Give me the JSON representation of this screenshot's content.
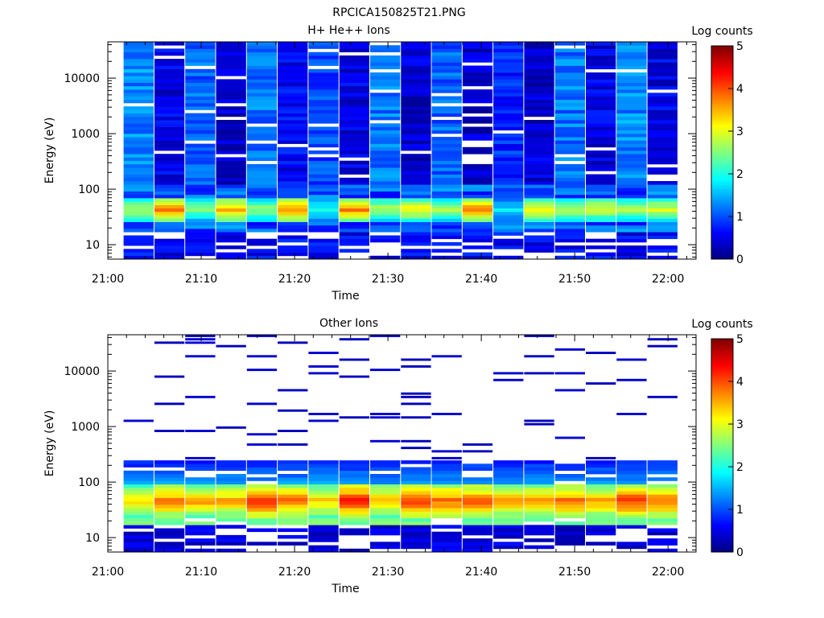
{
  "page": {
    "title": "RPCICA150825T21.PNG"
  },
  "chart_data": [
    {
      "type": "heatmap",
      "title": "H+ He++ Ions",
      "xlabel": "Time",
      "ylabel": "Energy (eV)",
      "x_ticks": [
        "21:00",
        "21:10",
        "21:20",
        "21:30",
        "21:40",
        "21:50",
        "22:00"
      ],
      "y_ticks": [
        "10",
        "100",
        "1000",
        "10000"
      ],
      "y_scale": "log",
      "ylim": [
        5.5,
        45000
      ],
      "xlim_minutes": [
        0,
        63
      ],
      "colorbar": {
        "label": "Log counts",
        "ticks": [
          "0",
          "1",
          "2",
          "3",
          "4",
          "5"
        ],
        "range": [
          0,
          5
        ],
        "colormap": "jet"
      },
      "grid": false,
      "columns_time_minutes": [
        3.3,
        6.6,
        9.9,
        13.2,
        16.5,
        19.8,
        23.1,
        26.4,
        29.7,
        33.0,
        36.3,
        39.6,
        42.9,
        46.2,
        49.5,
        52.8,
        56.1,
        59.4
      ],
      "peak_energy_eV": [
        [
          35,
          55
        ],
        [
          35,
          55
        ],
        [
          35,
          55
        ],
        [
          35,
          55
        ],
        [
          35,
          55
        ],
        [
          35,
          55
        ],
        [
          35,
          55
        ],
        [
          35,
          55
        ],
        [
          35,
          55
        ],
        [
          35,
          55
        ],
        [
          35,
          55
        ],
        [
          35,
          55
        ],
        [
          35,
          55
        ],
        [
          35,
          55
        ],
        [
          35,
          55
        ],
        [
          35,
          55
        ],
        [
          35,
          55
        ],
        [
          35,
          55
        ]
      ],
      "peak_log_counts": [
        2.8,
        3.8,
        2.5,
        3.6,
        2.6,
        3.8,
        2.0,
        3.9,
        2.8,
        3.2,
        2.7,
        3.8,
        1.8,
        3.3,
        2.9,
        3.0,
        2.8,
        3.0
      ],
      "background_log_counts": [
        1.3,
        0.5,
        1.1,
        0.4,
        1.2,
        0.6,
        1.0,
        0.5,
        1.2,
        0.4,
        1.1,
        0.4,
        0.8,
        0.4,
        1.2,
        0.5,
        1.3,
        0.5
      ]
    },
    {
      "type": "heatmap",
      "title": "Other Ions",
      "xlabel": "Time",
      "ylabel": "Energy (eV)",
      "x_ticks": [
        "21:00",
        "21:10",
        "21:20",
        "21:30",
        "21:40",
        "21:50",
        "22:00"
      ],
      "y_ticks": [
        "10",
        "100",
        "1000",
        "10000"
      ],
      "y_scale": "log",
      "ylim": [
        5.5,
        45000
      ],
      "xlim_minutes": [
        0,
        63
      ],
      "colorbar": {
        "label": "Log counts",
        "ticks": [
          "0",
          "1",
          "2",
          "3",
          "4",
          "5"
        ],
        "range": [
          0,
          5
        ],
        "colormap": "jet"
      },
      "grid": false,
      "columns_time_minutes": [
        3.3,
        6.6,
        9.9,
        13.2,
        16.5,
        19.8,
        23.1,
        26.4,
        29.7,
        33.0,
        36.3,
        39.6,
        42.9,
        46.2,
        49.5,
        52.8,
        56.1,
        59.4
      ],
      "peak_energy_eV": [
        [
          30,
          70
        ],
        [
          30,
          70
        ],
        [
          30,
          70
        ],
        [
          30,
          70
        ],
        [
          30,
          70
        ],
        [
          30,
          70
        ],
        [
          30,
          70
        ],
        [
          30,
          70
        ],
        [
          30,
          70
        ],
        [
          30,
          70
        ],
        [
          30,
          70
        ],
        [
          30,
          70
        ],
        [
          30,
          70
        ],
        [
          30,
          70
        ],
        [
          30,
          70
        ],
        [
          30,
          70
        ],
        [
          30,
          70
        ],
        [
          30,
          70
        ]
      ],
      "peak_log_counts": [
        3.3,
        3.8,
        3.6,
        3.6,
        4.2,
        3.9,
        3.4,
        4.3,
        3.5,
        4.2,
        3.9,
        4.0,
        3.6,
        3.6,
        3.9,
        3.6,
        4.2,
        3.9
      ],
      "background_log_counts": [
        0.4,
        0.3,
        0.4,
        0.3,
        0.4,
        0.3,
        0.4,
        0.3,
        0.4,
        0.3,
        0.4,
        0.3,
        0.4,
        0.3,
        0.4,
        0.3,
        0.4,
        0.3
      ]
    }
  ]
}
